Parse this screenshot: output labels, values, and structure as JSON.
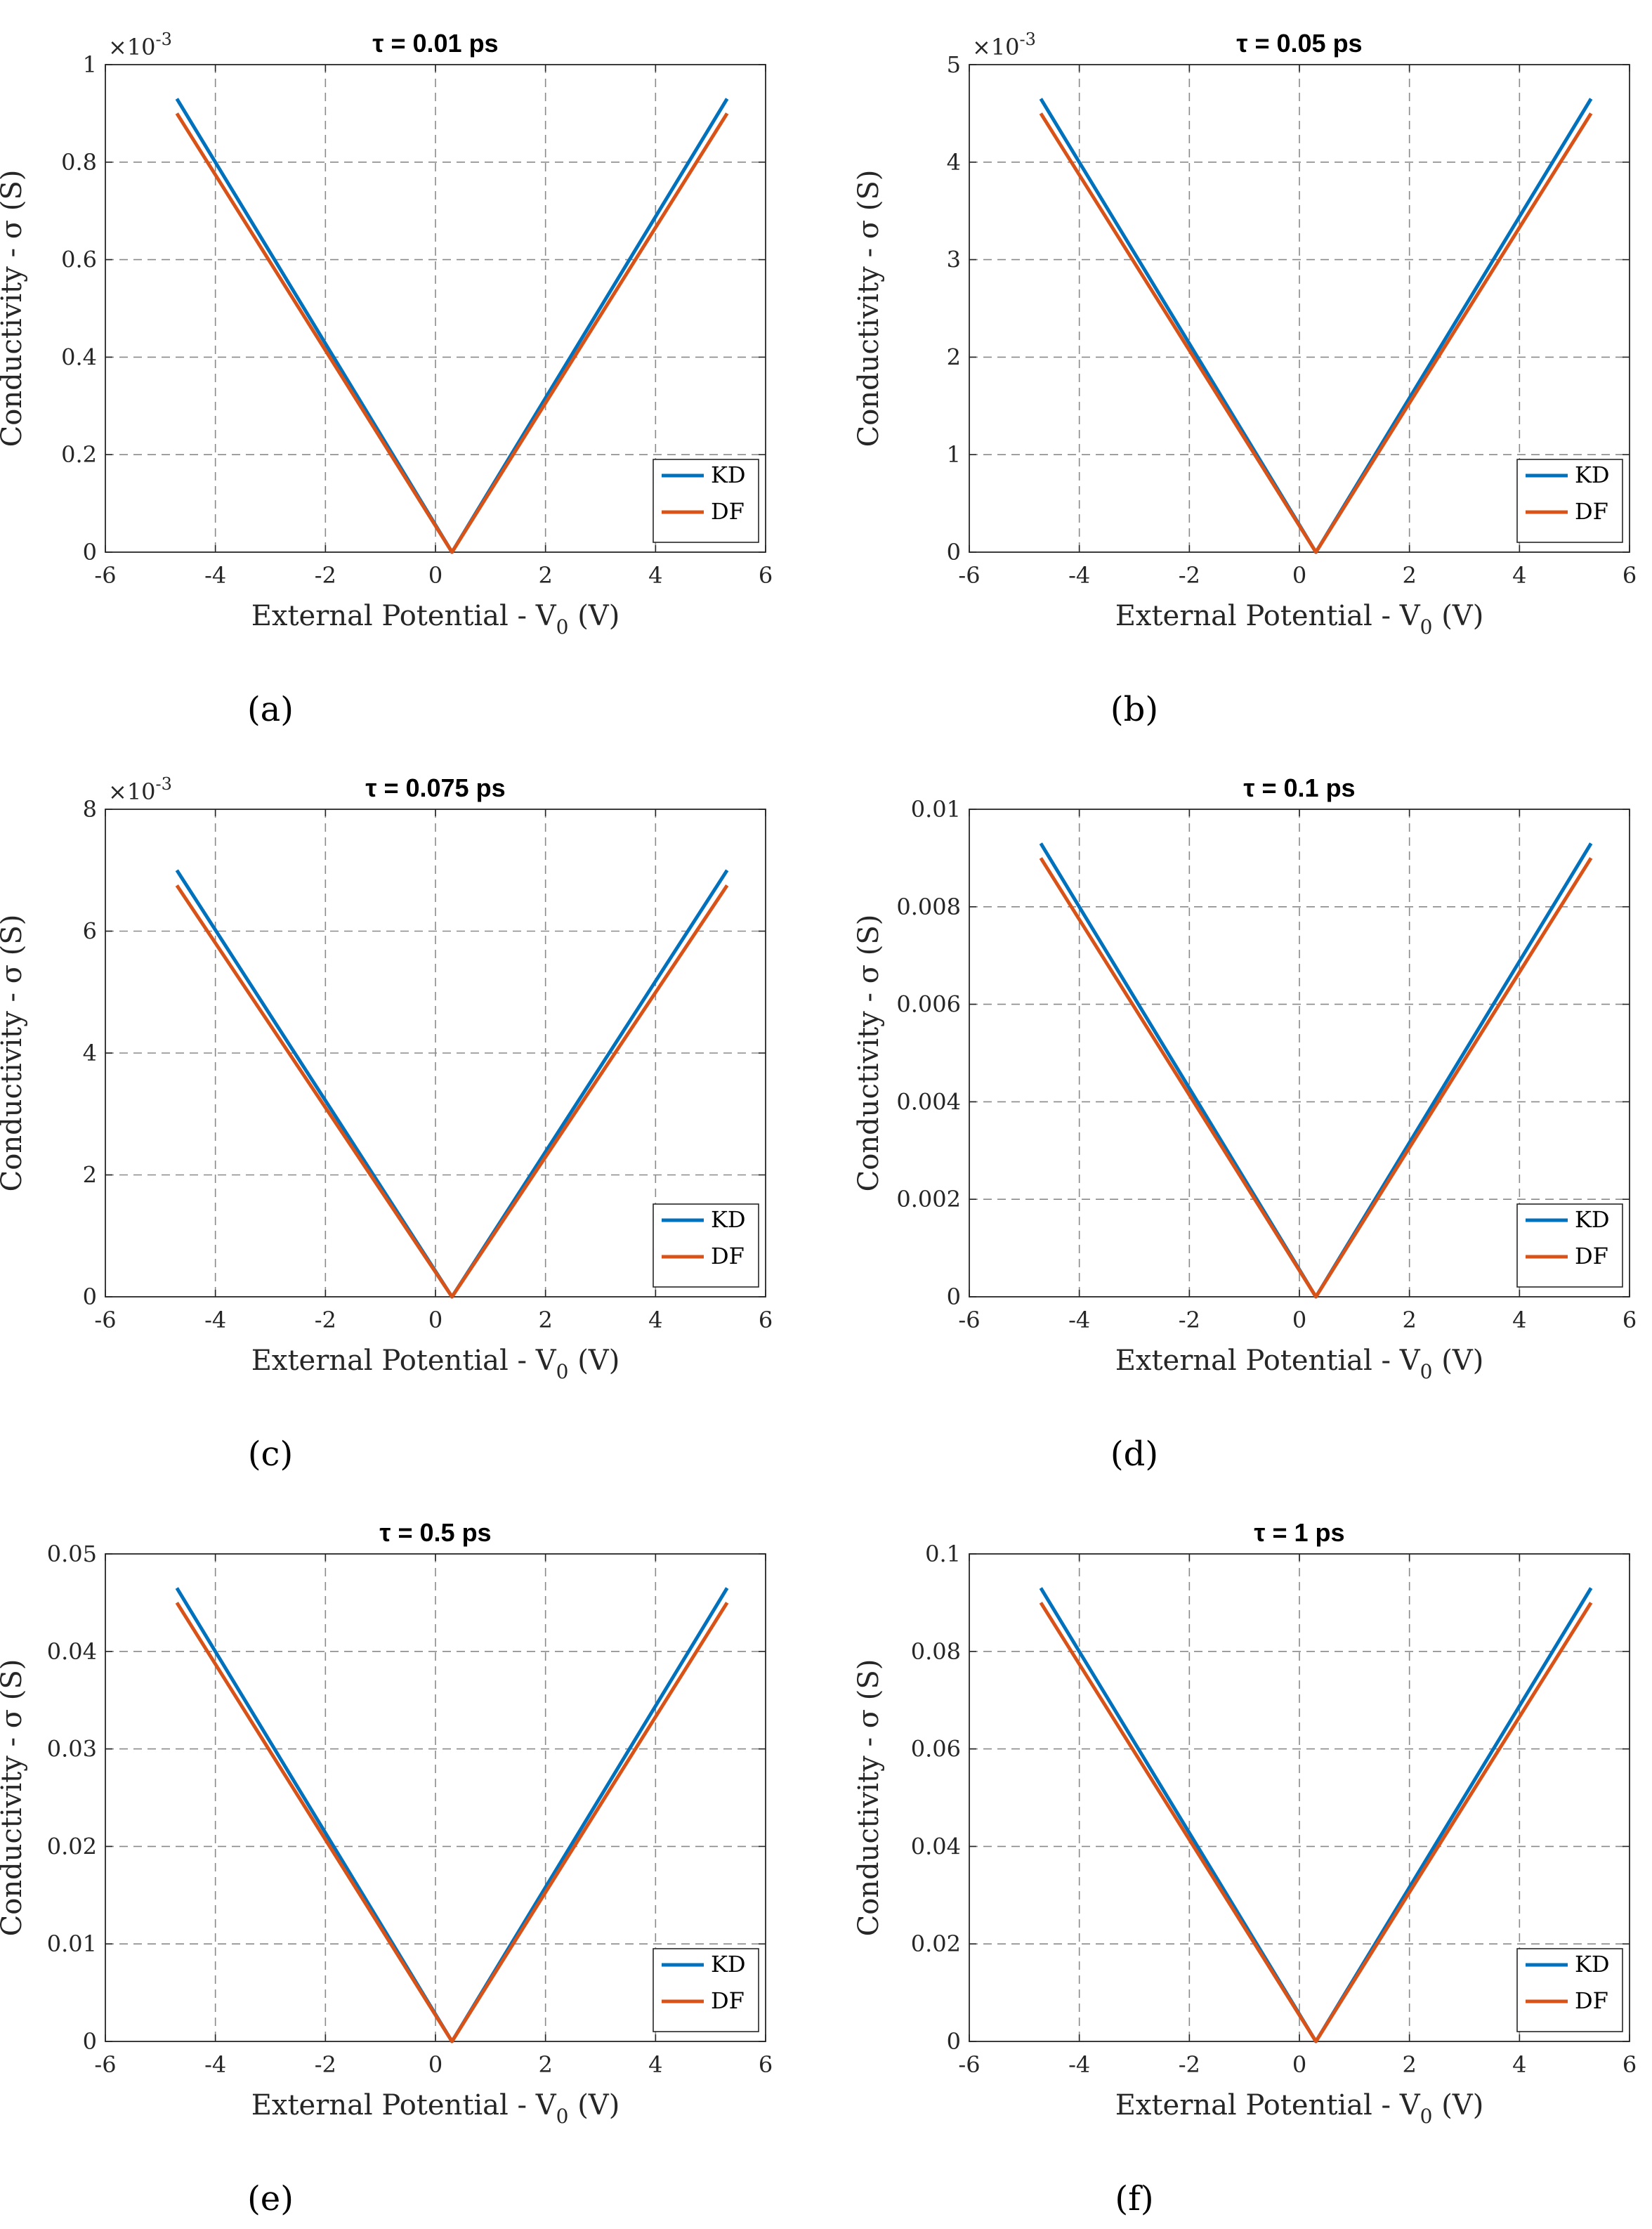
{
  "figure": {
    "legend_colors": {
      "KD": "#0072BD",
      "DF": "#D95319"
    },
    "panels_common": {
      "xlabel": "External Potential - V",
      "xlabel_sub": "0",
      "xlabel_unit": "(V)",
      "ylabel": "Conductivity - σ (S)",
      "legend": [
        "KD",
        "DF"
      ]
    }
  },
  "chart_data": [
    {
      "type": "line",
      "panel_label": "(a)",
      "title": "τ = 0.01 ps",
      "xlabel": "External Potential - V0 (V)",
      "ylabel": "Conductivity - σ (S)",
      "xlim": [
        -6,
        6
      ],
      "ylim": [
        0,
        1
      ],
      "xticks": [
        "-6",
        "-4",
        "-2",
        "0",
        "2",
        "4",
        "6"
      ],
      "yticks": [
        "0",
        "0.2",
        "0.4",
        "0.6",
        "0.8",
        "1"
      ],
      "exponent_label": "×10",
      "exponent_power": "-3",
      "grid": true,
      "legend_position": "bottom-right",
      "series": [
        {
          "name": "KD",
          "color": "#0072BD",
          "x": [
            -4.7,
            0.3,
            5.3
          ],
          "y": [
            0.93,
            0.0,
            0.93
          ]
        },
        {
          "name": "DF",
          "color": "#D95319",
          "x": [
            -4.7,
            0.3,
            5.3
          ],
          "y": [
            0.9,
            0.0,
            0.9
          ]
        }
      ]
    },
    {
      "type": "line",
      "panel_label": "(b)",
      "title": "τ = 0.05 ps",
      "xlabel": "External Potential - V0 (V)",
      "ylabel": "Conductivity - σ (S)",
      "xlim": [
        -6,
        6
      ],
      "ylim": [
        0,
        5
      ],
      "xticks": [
        "-6",
        "-4",
        "-2",
        "0",
        "2",
        "4",
        "6"
      ],
      "yticks": [
        "0",
        "1",
        "2",
        "3",
        "4",
        "5"
      ],
      "exponent_label": "×10",
      "exponent_power": "-3",
      "grid": true,
      "legend_position": "bottom-right",
      "series": [
        {
          "name": "KD",
          "color": "#0072BD",
          "x": [
            -4.7,
            0.3,
            5.3
          ],
          "y": [
            4.65,
            0.0,
            4.65
          ]
        },
        {
          "name": "DF",
          "color": "#D95319",
          "x": [
            -4.7,
            0.3,
            5.3
          ],
          "y": [
            4.5,
            0.0,
            4.5
          ]
        }
      ]
    },
    {
      "type": "line",
      "panel_label": "(c)",
      "title": "τ = 0.075 ps",
      "xlabel": "External Potential - V0 (V)",
      "ylabel": "Conductivity - σ (S)",
      "xlim": [
        -6,
        6
      ],
      "ylim": [
        0,
        8
      ],
      "xticks": [
        "-6",
        "-4",
        "-2",
        "0",
        "2",
        "4",
        "6"
      ],
      "yticks": [
        "0",
        "2",
        "4",
        "6",
        "8"
      ],
      "exponent_label": "×10",
      "exponent_power": "-3",
      "grid": true,
      "legend_position": "bottom-right",
      "series": [
        {
          "name": "KD",
          "color": "#0072BD",
          "x": [
            -4.7,
            0.3,
            5.3
          ],
          "y": [
            7.0,
            0.0,
            7.0
          ]
        },
        {
          "name": "DF",
          "color": "#D95319",
          "x": [
            -4.7,
            0.3,
            5.3
          ],
          "y": [
            6.75,
            0.0,
            6.75
          ]
        }
      ]
    },
    {
      "type": "line",
      "panel_label": "(d)",
      "title": "τ = 0.1 ps",
      "xlabel": "External Potential - V0 (V)",
      "ylabel": "Conductivity - σ (S)",
      "xlim": [
        -6,
        6
      ],
      "ylim": [
        0,
        0.01
      ],
      "xticks": [
        "-6",
        "-4",
        "-2",
        "0",
        "2",
        "4",
        "6"
      ],
      "yticks": [
        "0",
        "0.002",
        "0.004",
        "0.006",
        "0.008",
        "0.01"
      ],
      "grid": true,
      "legend_position": "bottom-right",
      "series": [
        {
          "name": "KD",
          "color": "#0072BD",
          "x": [
            -4.7,
            0.3,
            5.3
          ],
          "y": [
            0.0093,
            0.0,
            0.0093
          ]
        },
        {
          "name": "DF",
          "color": "#D95319",
          "x": [
            -4.7,
            0.3,
            5.3
          ],
          "y": [
            0.009,
            0.0,
            0.009
          ]
        }
      ]
    },
    {
      "type": "line",
      "panel_label": "(e)",
      "title": "τ = 0.5 ps",
      "xlabel": "External Potential - V0 (V)",
      "ylabel": "Conductivity - σ (S)",
      "xlim": [
        -6,
        6
      ],
      "ylim": [
        0,
        0.05
      ],
      "xticks": [
        "-6",
        "-4",
        "-2",
        "0",
        "2",
        "4",
        "6"
      ],
      "yticks": [
        "0",
        "0.01",
        "0.02",
        "0.03",
        "0.04",
        "0.05"
      ],
      "grid": true,
      "legend_position": "bottom-right",
      "series": [
        {
          "name": "KD",
          "color": "#0072BD",
          "x": [
            -4.7,
            0.3,
            5.3
          ],
          "y": [
            0.0465,
            0.0,
            0.0465
          ]
        },
        {
          "name": "DF",
          "color": "#D95319",
          "x": [
            -4.7,
            0.3,
            5.3
          ],
          "y": [
            0.045,
            0.0,
            0.045
          ]
        }
      ]
    },
    {
      "type": "line",
      "panel_label": "(f)",
      "title": "τ = 1 ps",
      "xlabel": "External Potential - V0 (V)",
      "ylabel": "Conductivity - σ (S)",
      "xlim": [
        -6,
        6
      ],
      "ylim": [
        0,
        0.1
      ],
      "xticks": [
        "-6",
        "-4",
        "-2",
        "0",
        "2",
        "4",
        "6"
      ],
      "yticks": [
        "0",
        "0.02",
        "0.04",
        "0.06",
        "0.08",
        "0.1"
      ],
      "grid": true,
      "legend_position": "bottom-right",
      "series": [
        {
          "name": "KD",
          "color": "#0072BD",
          "x": [
            -4.7,
            0.3,
            5.3
          ],
          "y": [
            0.093,
            0.0,
            0.093
          ]
        },
        {
          "name": "DF",
          "color": "#D95319",
          "x": [
            -4.7,
            0.3,
            5.3
          ],
          "y": [
            0.09,
            0.0,
            0.09
          ]
        }
      ]
    }
  ]
}
